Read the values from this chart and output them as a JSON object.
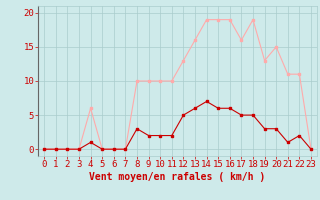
{
  "hours": [
    0,
    1,
    2,
    3,
    4,
    5,
    6,
    7,
    8,
    9,
    10,
    11,
    12,
    13,
    14,
    15,
    16,
    17,
    18,
    19,
    20,
    21,
    22,
    23
  ],
  "vent_moyen": [
    0,
    0,
    0,
    0,
    1,
    0,
    0,
    0,
    3,
    2,
    2,
    2,
    5,
    6,
    7,
    6,
    6,
    5,
    5,
    3,
    3,
    1,
    2,
    0
  ],
  "rafales": [
    0,
    0,
    0,
    0,
    6,
    0,
    0,
    0,
    10,
    10,
    10,
    10,
    13,
    16,
    19,
    19,
    19,
    16,
    19,
    13,
    15,
    11,
    11,
    0
  ],
  "line_color_moyen": "#cc0000",
  "line_color_rafales": "#ffaaaa",
  "background_color": "#ceeaea",
  "grid_color": "#aacccc",
  "xlabel": "Vent moyen/en rafales ( km/h )",
  "ylim": [
    -1,
    21
  ],
  "yticks": [
    0,
    5,
    10,
    15,
    20
  ],
  "tick_fontsize": 6.5,
  "xlabel_fontsize": 7
}
